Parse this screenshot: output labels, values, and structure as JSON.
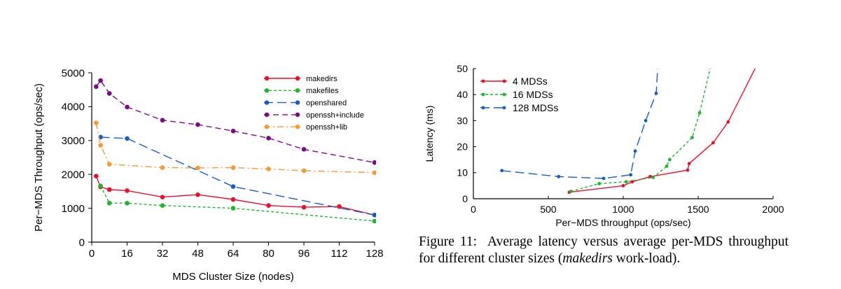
{
  "chart_data": [
    {
      "type": "line",
      "title": "",
      "xlabel": "MDS Cluster Size (nodes)",
      "ylabel": "Per−MDS Throughput (ops/sec)",
      "xlim": [
        0,
        128
      ],
      "ylim": [
        0,
        5000
      ],
      "xticks": [
        0,
        16,
        32,
        48,
        64,
        80,
        96,
        112,
        128
      ],
      "yticks": [
        0,
        1000,
        2000,
        3000,
        4000,
        5000
      ],
      "legend_position": "top-right",
      "series": [
        {
          "name": "makedirs",
          "color": "#e8102a",
          "dash": "solid",
          "x": [
            2,
            4,
            8,
            16,
            32,
            48,
            64,
            80,
            96,
            112,
            128
          ],
          "y": [
            1950,
            1630,
            1550,
            1520,
            1330,
            1400,
            1260,
            1080,
            1030,
            1050,
            800
          ]
        },
        {
          "name": "makefiles",
          "color": "#21b431",
          "dash": "dotted",
          "x": [
            4,
            8,
            16,
            32,
            64,
            128
          ],
          "y": [
            1660,
            1150,
            1150,
            1080,
            1000,
            620
          ]
        },
        {
          "name": "openshared",
          "color": "#1a5ac8",
          "dash": "long-dash",
          "x": [
            4,
            16,
            64,
            128
          ],
          "y": [
            3100,
            3060,
            1640,
            800
          ]
        },
        {
          "name": "openssh+include",
          "color": "#7a0a86",
          "dash": "dash",
          "x": [
            2,
            4,
            8,
            16,
            32,
            48,
            64,
            80,
            96,
            128
          ],
          "y": [
            4590,
            4770,
            4390,
            3990,
            3600,
            3470,
            3280,
            3070,
            2740,
            2350
          ]
        },
        {
          "name": "openssh+lib",
          "color": "#f59a34",
          "dash": "dash-dot",
          "x": [
            2,
            4,
            8,
            32,
            48,
            64,
            80,
            96,
            128
          ],
          "y": [
            3520,
            2860,
            2300,
            2200,
            2190,
            2200,
            2160,
            2110,
            2050
          ]
        }
      ]
    },
    {
      "type": "line",
      "title": "",
      "xlabel": "Per−MDS throughput (ops/sec)",
      "ylabel": "Latency (ms)",
      "xlim": [
        0,
        2000
      ],
      "ylim": [
        0,
        50
      ],
      "xticks": [
        0,
        500,
        1000,
        1500,
        2000
      ],
      "yticks": [
        0,
        10,
        20,
        30,
        40,
        50
      ],
      "legend_position": "top-left",
      "series": [
        {
          "name": "4 MDSs",
          "color": "#e8102a",
          "dash": "solid",
          "x": [
            640,
            1000,
            1060,
            1180,
            1430,
            1440,
            1600,
            1700,
            1880
          ],
          "y": [
            2.5,
            5,
            6.5,
            8.5,
            11,
            13.5,
            21.5,
            29.5,
            50
          ]
        },
        {
          "name": "16 MDSs",
          "color": "#21b431",
          "dash": "dotted",
          "x": [
            650,
            840,
            1020,
            1200,
            1290,
            1310,
            1460,
            1510,
            1580
          ],
          "y": [
            2.8,
            5.8,
            6.5,
            8.2,
            12.5,
            15,
            23.5,
            33,
            50
          ]
        },
        {
          "name": "128 MDSs",
          "color": "#1a5ac8",
          "dash": "long-dash",
          "x": [
            190,
            570,
            870,
            1050,
            1080,
            1150,
            1220,
            1230
          ],
          "y": [
            10.8,
            8.5,
            7.8,
            9.2,
            18.3,
            30,
            40.5,
            50
          ]
        }
      ]
    }
  ],
  "caption": {
    "label": "Figure 11:",
    "text_before": "Average latency versus average per-MDS throughput for different cluster sizes (",
    "emphasis": "makedirs",
    "text_after": " work-load)."
  }
}
